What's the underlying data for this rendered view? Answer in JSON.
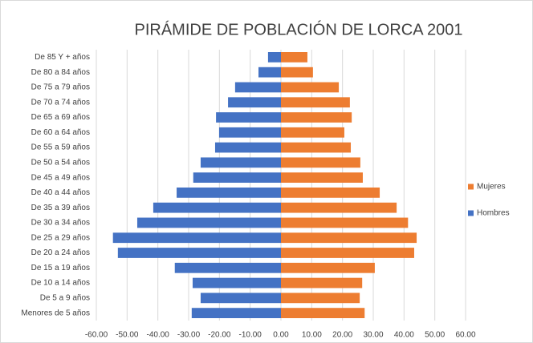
{
  "chart_data": {
    "type": "bar",
    "orientation": "horizontal",
    "stacked": "overlap",
    "title": "PIRÁMIDE DE POBLACIÓN DE LORCA 2001",
    "categories": [
      "Menores de 5 años",
      "De 5 a 9 años",
      "De 10 a 14 años",
      "De 15 a 19 años",
      "De 20 a 24 años",
      "De 25 a 29 años",
      "De 30 a 34 años",
      "De 35 a 39 años",
      "De 40 a 44 años",
      "De 45 a 49 años",
      "De 50 a 54 años",
      "De 55 a 59 años",
      "De 60 a 64 años",
      "De 65 a 69 años",
      "De 70 a 74 años",
      "De 75 a 79 años",
      "De 80 a 84 años",
      "De 85 Y + años"
    ],
    "series": [
      {
        "name": "Hombres",
        "color": "#4472c4",
        "values": [
          -29.0,
          -26.1,
          -28.7,
          -34.5,
          -53.0,
          -54.6,
          -46.7,
          -41.5,
          -33.9,
          -28.5,
          -26.1,
          -21.4,
          -20.1,
          -21.1,
          -17.2,
          -14.9,
          -7.3,
          -4.2
        ]
      },
      {
        "name": "Mujeres",
        "color": "#ed7d31",
        "values": [
          27.2,
          25.6,
          26.4,
          30.5,
          43.3,
          44.1,
          41.3,
          37.6,
          32.1,
          26.6,
          25.8,
          22.7,
          20.6,
          23.0,
          22.4,
          18.8,
          10.4,
          8.6
        ]
      }
    ],
    "xlim": [
      -60,
      60
    ],
    "xticks": [
      {
        "value": -60,
        "label": "-60.00"
      },
      {
        "value": -50,
        "label": "-50.00"
      },
      {
        "value": -40,
        "label": "-40.00"
      },
      {
        "value": -30,
        "label": "-30.00"
      },
      {
        "value": -20,
        "label": "-20.00"
      },
      {
        "value": -10,
        "label": "-10.00"
      },
      {
        "value": 0,
        "label": "0.00"
      },
      {
        "value": 10,
        "label": "10.00"
      },
      {
        "value": 20,
        "label": "20.00"
      },
      {
        "value": 30,
        "label": "30.00"
      },
      {
        "value": 40,
        "label": "40.00"
      },
      {
        "value": 50,
        "label": "50.00"
      },
      {
        "value": 60,
        "label": "60.00"
      }
    ],
    "grid": true,
    "legend": "right"
  }
}
